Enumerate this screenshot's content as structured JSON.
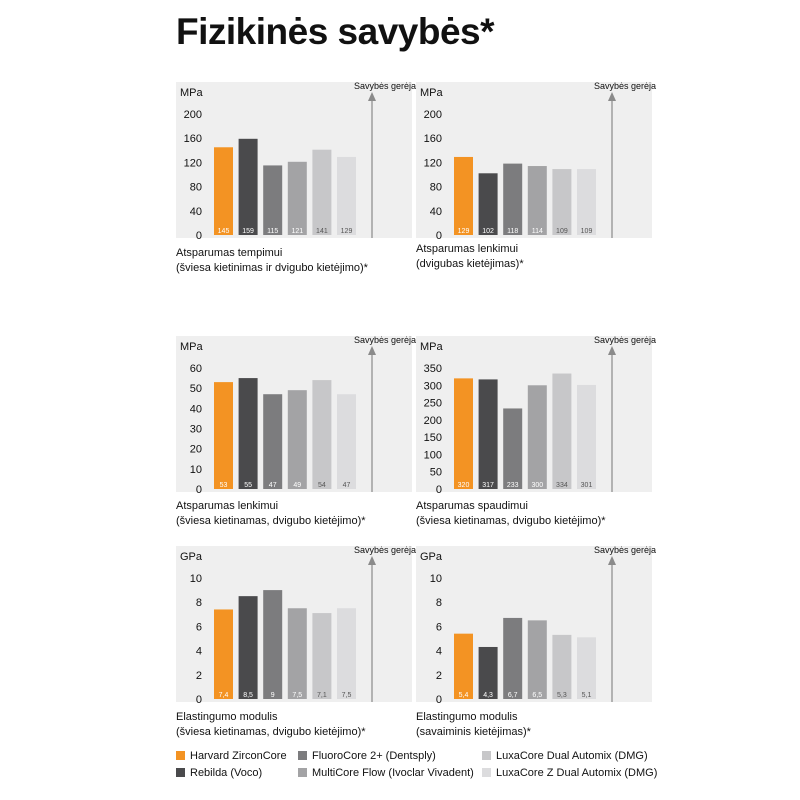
{
  "page": {
    "title": "Fizikinės savybės*"
  },
  "colors": [
    "#f39323",
    "#4a4a4c",
    "#7c7c7e",
    "#a3a3a5",
    "#c7c7c9",
    "#dcdcde"
  ],
  "legend": [
    {
      "label": "Harvard ZirconCore",
      "color": "#f39323"
    },
    {
      "label": "Rebilda (Voco)",
      "color": "#4a4a4c"
    },
    {
      "label": "FluoroCore 2+ (Dentsply)",
      "color": "#7c7c7e"
    },
    {
      "label": "MultiCore Flow (Ivoclar Vivadent)",
      "color": "#a3a3a5"
    },
    {
      "label": "LuxaCore Dual Automix (DMG)",
      "color": "#c7c7c9"
    },
    {
      "label": "LuxaCore Z Dual Automix (DMG)",
      "color": "#dcdcde"
    }
  ],
  "chart_data": [
    {
      "type": "bar",
      "unit": "MPa",
      "arrow_label": "Savybės gerėja",
      "caption": [
        "Atsparumas tempimui",
        "(šviesa kietinimas ir dvigubo kietėjimo)*"
      ],
      "yticks": [
        0,
        40,
        80,
        120,
        160,
        200
      ],
      "ylim": [
        0,
        200
      ],
      "values": [
        145,
        159,
        115,
        121,
        141,
        129
      ],
      "value_labels": [
        "145",
        "159",
        "115",
        "121",
        "141",
        "129"
      ]
    },
    {
      "type": "bar",
      "unit": "MPa",
      "arrow_label": "Savybės gerėja",
      "caption": [
        "Atsparumas lenkimui",
        "(dvigubas kietėjimas)*"
      ],
      "yticks": [
        0,
        40,
        80,
        120,
        160,
        200
      ],
      "ylim": [
        0,
        200
      ],
      "values": [
        129,
        102,
        118,
        114,
        109,
        109
      ],
      "value_labels": [
        "129",
        "102",
        "118",
        "114",
        "109",
        "109"
      ]
    },
    {
      "type": "bar",
      "unit": "MPa",
      "arrow_label": "Savybės gerėja",
      "caption": [
        "Atsparumas lenkimui",
        "(šviesa kietinamas, dvigubo kietėjimo)*"
      ],
      "yticks": [
        0,
        10,
        20,
        30,
        40,
        50,
        60
      ],
      "ylim": [
        0,
        60
      ],
      "values": [
        53,
        55,
        47,
        49,
        54,
        47
      ],
      "value_labels": [
        "53",
        "55",
        "47",
        "49",
        "54",
        "47"
      ]
    },
    {
      "type": "bar",
      "unit": "MPa",
      "arrow_label": "Savybės gerėja",
      "caption": [
        "Atsparumas spaudimui",
        "(šviesa kietinamas, dvigubo kietėjimo)*"
      ],
      "yticks": [
        0,
        50,
        100,
        150,
        200,
        250,
        300,
        350
      ],
      "ylim": [
        0,
        350
      ],
      "values": [
        320,
        317,
        233,
        300,
        334,
        301
      ],
      "value_labels": [
        "320",
        "317",
        "233",
        "300",
        "334",
        "301"
      ]
    },
    {
      "type": "bar",
      "unit": "GPa",
      "arrow_label": "Savybės gerėja",
      "caption": [
        "Elastingumo modulis",
        "(šviesa kietinamas, dvigubo kietėjimo)*"
      ],
      "yticks": [
        0,
        2,
        4,
        6,
        8,
        10
      ],
      "ylim": [
        0,
        10
      ],
      "values": [
        7.4,
        8.5,
        9,
        7.5,
        7.1,
        7.5
      ],
      "value_labels": [
        "7,4",
        "8,5",
        "9",
        "7,5",
        "7,1",
        "7,5"
      ]
    },
    {
      "type": "bar",
      "unit": "GPa",
      "arrow_label": "Savybės gerėja",
      "caption": [
        "Elastingumo modulis",
        " (savaiminis kietėjimas)*"
      ],
      "yticks": [
        0,
        2,
        4,
        6,
        8,
        10
      ],
      "ylim": [
        0,
        10
      ],
      "values": [
        5.4,
        4.3,
        6.7,
        6.5,
        5.3,
        5.1
      ],
      "value_labels": [
        "5,4",
        "4,3",
        "6,7",
        "6,5",
        "5,3",
        "5,1"
      ]
    }
  ]
}
